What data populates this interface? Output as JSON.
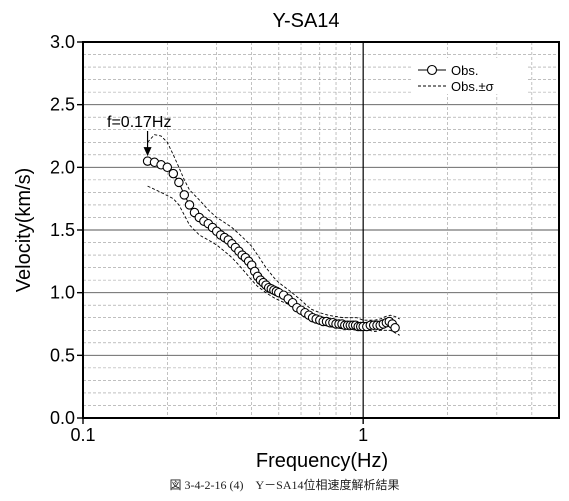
{
  "chart_data": {
    "type": "scatter",
    "title": "Y-SA14",
    "xlabel": "Frequency(Hz)",
    "ylabel": "Velocity(km/s)",
    "x_scale": "log",
    "xlim": [
      0.1,
      5
    ],
    "ylim": [
      0.0,
      3.0
    ],
    "grid": true,
    "legend_position": "top-right",
    "x_ticks": [
      {
        "value": 0.1,
        "label": "0.1"
      },
      {
        "value": 1,
        "label": "1"
      }
    ],
    "y_ticks": [
      {
        "value": 0.0,
        "label": "0.0"
      },
      {
        "value": 0.5,
        "label": "0.5"
      },
      {
        "value": 1.0,
        "label": "1.0"
      },
      {
        "value": 1.5,
        "label": "1.5"
      },
      {
        "value": 2.0,
        "label": "2.0"
      },
      {
        "value": 2.5,
        "label": "2.5"
      },
      {
        "value": 3.0,
        "label": "3.0"
      }
    ],
    "annotation": {
      "text": "f=0.17Hz",
      "x": 0.17,
      "y": 2.05
    },
    "series": [
      {
        "name": "Obs.",
        "style": "circles-line",
        "x": [
          0.17,
          0.18,
          0.19,
          0.2,
          0.21,
          0.22,
          0.23,
          0.24,
          0.25,
          0.26,
          0.27,
          0.28,
          0.29,
          0.3,
          0.31,
          0.32,
          0.33,
          0.34,
          0.35,
          0.36,
          0.37,
          0.38,
          0.39,
          0.4,
          0.41,
          0.42,
          0.43,
          0.44,
          0.45,
          0.46,
          0.47,
          0.48,
          0.49,
          0.5,
          0.52,
          0.54,
          0.56,
          0.58,
          0.6,
          0.62,
          0.64,
          0.66,
          0.68,
          0.7,
          0.72,
          0.74,
          0.76,
          0.78,
          0.8,
          0.82,
          0.84,
          0.86,
          0.88,
          0.9,
          0.92,
          0.94,
          0.96,
          0.98,
          1.0,
          1.03,
          1.06,
          1.09,
          1.12,
          1.15,
          1.18,
          1.21,
          1.24,
          1.27,
          1.3
        ],
        "y": [
          2.05,
          2.04,
          2.02,
          2.0,
          1.95,
          1.88,
          1.78,
          1.7,
          1.64,
          1.6,
          1.57,
          1.55,
          1.52,
          1.49,
          1.46,
          1.44,
          1.42,
          1.39,
          1.36,
          1.33,
          1.3,
          1.28,
          1.25,
          1.22,
          1.17,
          1.13,
          1.1,
          1.08,
          1.06,
          1.04,
          1.03,
          1.02,
          1.01,
          1.0,
          0.98,
          0.95,
          0.92,
          0.88,
          0.86,
          0.84,
          0.82,
          0.8,
          0.79,
          0.78,
          0.77,
          0.77,
          0.76,
          0.76,
          0.75,
          0.75,
          0.75,
          0.74,
          0.74,
          0.74,
          0.74,
          0.74,
          0.73,
          0.73,
          0.73,
          0.73,
          0.74,
          0.74,
          0.74,
          0.74,
          0.75,
          0.76,
          0.77,
          0.75,
          0.72
        ]
      },
      {
        "name": "Obs.±σ",
        "style": "dashed",
        "upper": {
          "x": [
            0.17,
            0.18,
            0.19,
            0.2,
            0.21,
            0.22,
            0.23,
            0.24,
            0.26,
            0.28,
            0.3,
            0.32,
            0.34,
            0.36,
            0.38,
            0.4,
            0.42,
            0.45,
            0.48,
            0.5,
            0.55,
            0.6,
            0.65,
            0.7,
            0.75,
            0.8,
            0.85,
            0.9,
            0.95,
            1.0,
            1.05,
            1.1,
            1.15,
            1.2,
            1.25,
            1.3,
            1.35
          ],
          "y": [
            2.2,
            2.26,
            2.25,
            2.2,
            2.1,
            2.0,
            1.9,
            1.82,
            1.74,
            1.66,
            1.6,
            1.56,
            1.52,
            1.47,
            1.42,
            1.37,
            1.3,
            1.2,
            1.12,
            1.08,
            1.01,
            0.94,
            0.87,
            0.84,
            0.82,
            0.81,
            0.8,
            0.8,
            0.8,
            0.78,
            0.78,
            0.78,
            0.79,
            0.81,
            0.82,
            0.81,
            0.79
          ]
        },
        "lower": {
          "x": [
            0.17,
            0.19,
            0.21,
            0.22,
            0.23,
            0.24,
            0.26,
            0.28,
            0.3,
            0.32,
            0.34,
            0.36,
            0.38,
            0.4,
            0.42,
            0.45,
            0.48,
            0.5,
            0.55,
            0.6,
            0.65,
            0.7,
            0.75,
            0.8,
            0.85,
            0.9,
            0.95,
            1.0,
            1.05,
            1.1,
            1.15,
            1.2,
            1.25,
            1.3,
            1.35
          ],
          "y": [
            1.85,
            1.8,
            1.75,
            1.7,
            1.62,
            1.54,
            1.46,
            1.42,
            1.38,
            1.33,
            1.28,
            1.22,
            1.16,
            1.1,
            1.05,
            1.0,
            0.96,
            0.94,
            0.9,
            0.86,
            0.8,
            0.76,
            0.73,
            0.72,
            0.71,
            0.71,
            0.7,
            0.7,
            0.7,
            0.69,
            0.7,
            0.7,
            0.7,
            0.68,
            0.66
          ]
        }
      }
    ]
  },
  "caption": "図 3-4-2-16 (4)　Y－SA14位相速度解析結果"
}
